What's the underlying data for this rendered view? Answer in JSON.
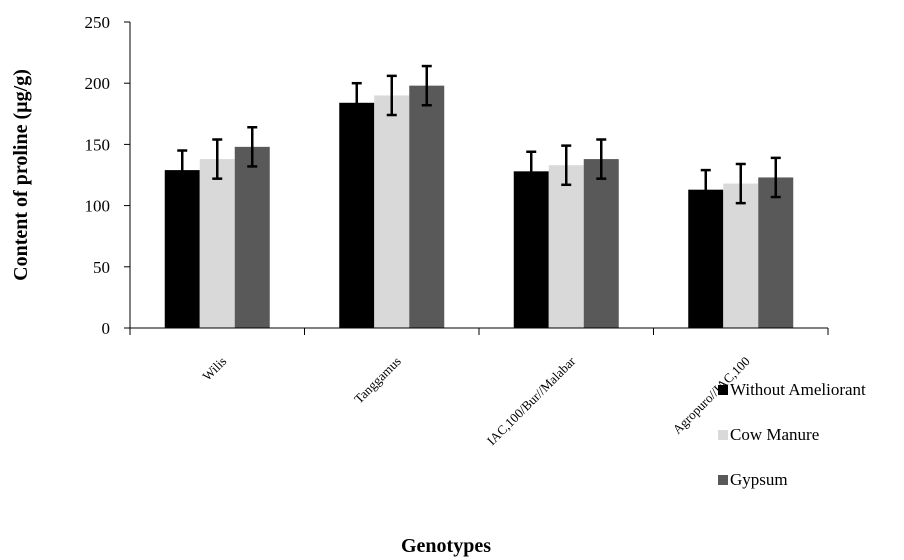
{
  "chart_data": {
    "type": "bar",
    "title": "",
    "xlabel": "Genotypes",
    "ylabel": "Content of proline (µg/g)",
    "ylim": [
      0,
      250
    ],
    "yticks": [
      0,
      50,
      100,
      150,
      200,
      250
    ],
    "grid": false,
    "legend_position": "right",
    "categories": [
      "Wilis",
      "Tanggamus",
      "IAC,100/Bur//Malabar",
      "Agropuro//IAC,100"
    ],
    "series": [
      {
        "name": "Without Ameliorant",
        "color": "#000000",
        "values": [
          129,
          184,
          128,
          113
        ],
        "errors": [
          16,
          16,
          16,
          16
        ]
      },
      {
        "name": "Cow Manure",
        "color": "#d9d9d9",
        "values": [
          138,
          190,
          133,
          118
        ],
        "errors": [
          16,
          16,
          16,
          16
        ]
      },
      {
        "name": "Gypsum",
        "color": "#595959",
        "values": [
          148,
          198,
          138,
          123
        ],
        "errors": [
          16,
          16,
          16,
          16
        ]
      }
    ]
  }
}
